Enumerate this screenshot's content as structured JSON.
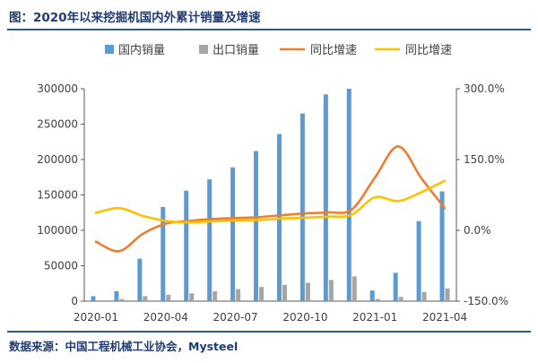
{
  "title": "图：2020年以来挖掘机国内外累计销量及增速",
  "source": "数据来源：中国工程机械工业协会，Mysteel",
  "colors": {
    "domestic": "#5b9bd5",
    "export": "#a5a5a5",
    "growth_orange": "#ed7d31",
    "growth_yellow": "#ffc000",
    "axis": "#595959",
    "text": "#404040",
    "heading": "#1f3c73"
  },
  "chart_data": {
    "type": "bar",
    "categories": [
      "2020-01",
      "2020-02",
      "2020-03",
      "2020-04",
      "2020-05",
      "2020-06",
      "2020-07",
      "2020-08",
      "2020-09",
      "2020-10",
      "2020-11",
      "2020-12",
      "2021-01",
      "2021-02",
      "2021-03",
      "2021-04"
    ],
    "x_tick_labels": [
      "2020-01",
      "2020-04",
      "2020-07",
      "2020-10",
      "2021-01",
      "2021-04"
    ],
    "series": [
      {
        "name": "国内销量",
        "type": "bar",
        "axis": "left",
        "values": [
          7000,
          14000,
          60000,
          133000,
          156000,
          172000,
          189000,
          212000,
          236000,
          265000,
          292000,
          300000,
          15000,
          40000,
          113000,
          155000
        ]
      },
      {
        "name": "出口销量",
        "type": "bar",
        "axis": "left",
        "values": [
          1000,
          3000,
          7000,
          9000,
          11000,
          14000,
          17000,
          20000,
          23000,
          26000,
          30000,
          35000,
          3000,
          6000,
          13000,
          18000
        ]
      },
      {
        "name": "同比增速",
        "type": "line",
        "axis": "right",
        "values": [
          -24.0,
          -44.0,
          -8.0,
          14.0,
          20.0,
          24.0,
          26.0,
          28.0,
          32.0,
          36.0,
          38.0,
          44.0,
          112.0,
          178.0,
          110.0,
          47.0
        ]
      },
      {
        "name": "同比增速",
        "type": "line",
        "axis": "right",
        "values": [
          37.0,
          47.0,
          31.0,
          20.0,
          17.0,
          19.0,
          21.0,
          22.0,
          25.0,
          27.0,
          29.0,
          33.0,
          70.0,
          62.0,
          81.0,
          105.0
        ]
      }
    ],
    "y_left": {
      "min": 0,
      "max": 300000,
      "ticks": [
        0,
        50000,
        100000,
        150000,
        200000,
        250000,
        300000
      ],
      "tick_labels": [
        "0",
        "50000",
        "100000",
        "150000",
        "200000",
        "250000",
        "300000"
      ]
    },
    "y_right": {
      "min": -150,
      "max": 300,
      "ticks": [
        -150,
        0,
        150,
        300
      ],
      "tick_labels": [
        "-150.0%",
        "0.0%",
        "150.0%",
        "300.0%"
      ]
    },
    "legend_position": "top"
  }
}
